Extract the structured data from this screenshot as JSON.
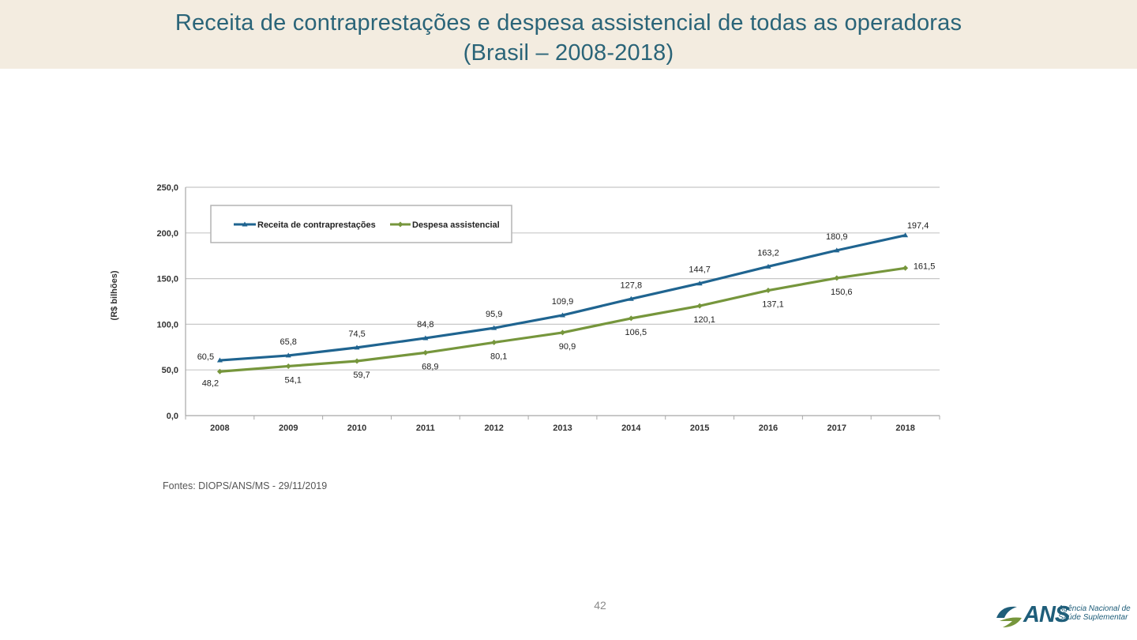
{
  "header": {
    "title_line1": "Receita de contraprestações e despesa assistencial de todas as operadoras",
    "title_line2": "(Brasil – 2008-2018)"
  },
  "footer": {
    "source": "Fontes: DIOPS/ANS/MS - 29/11/2019",
    "page_number": "42"
  },
  "logo": {
    "acronym": "ANS",
    "name_line1": "Agência Nacional de",
    "name_line2": "Saúde Suplementar"
  },
  "colors": {
    "title": "#2a6478",
    "series_receita": "#1f6490",
    "series_despesa": "#76963c",
    "grid": "#c8c8c8",
    "title_band": "#f3ece0"
  },
  "chart_data": {
    "type": "line",
    "title": "",
    "xlabel": "",
    "ylabel": "(R$ bilhões)",
    "ylim": [
      0,
      250
    ],
    "y_ticks": [
      "0,0",
      "50,0",
      "100,0",
      "150,0",
      "200,0",
      "250,0"
    ],
    "categories": [
      "2008",
      "2009",
      "2010",
      "2011",
      "2012",
      "2013",
      "2014",
      "2015",
      "2016",
      "2017",
      "2018"
    ],
    "legend_position": "top-left",
    "series": [
      {
        "name": "Receita de contraprestações",
        "values": [
          60.5,
          65.8,
          74.5,
          84.8,
          95.9,
          109.9,
          127.8,
          144.7,
          163.2,
          180.9,
          197.4
        ],
        "labels": [
          "60,5",
          "65,8",
          "74,5",
          "84,8",
          "95,9",
          "109,9",
          "127,8",
          "144,7",
          "163,2",
          "180,9",
          "197,4"
        ]
      },
      {
        "name": "Despesa assistencial",
        "values": [
          48.2,
          54.1,
          59.7,
          68.9,
          80.1,
          90.9,
          106.5,
          120.1,
          137.1,
          150.6,
          161.5
        ],
        "labels": [
          "48,2",
          "54,1",
          "59,7",
          "68,9",
          "80,1",
          "90,9",
          "106,5",
          "120,1",
          "137,1",
          "150,6",
          "161,5"
        ]
      }
    ]
  }
}
